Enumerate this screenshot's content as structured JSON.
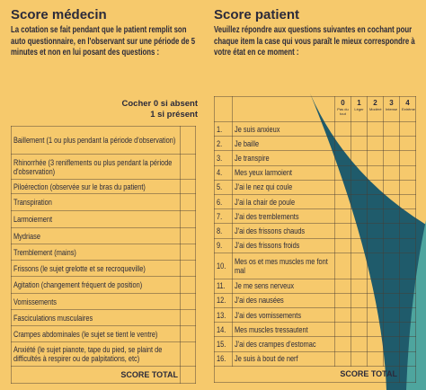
{
  "left": {
    "title": "Score médecin",
    "instructions": "La cotation se fait pendant que le patient remplit son auto questionnaire, en l'observant sur une période de 5 minutes et non en lui posant des questions :",
    "column_header": [
      "Cocher 0 si absent",
      "1 si présent"
    ],
    "rows": [
      "Baillement (1 ou plus pendant la période d'observation)",
      "Rhinorrhée (3 reniflements ou plus pendant la période d'observation)",
      "Piloérection (observée sur le bras du patient)",
      "Transpiration",
      "Larmoiement",
      "Mydriase",
      "Tremblement (mains)",
      "Frissons (le sujet grelotte et se recroqueville)",
      "Agitation (changement fréquent de position)",
      "Vomissements",
      "Fasciculations musculaires",
      "Crampes abdominales (le sujet se tient le ventre)",
      "Anxiété (le sujet pianote, tape du pied, se plaint de difficultés à respirer ou de palpitations, etc)"
    ],
    "total": "SCORE TOTAL"
  },
  "right": {
    "title": "Score patient",
    "instructions": "Veuillez répondre aux questions suivantes en cochant pour chaque item la case qui vous paraît le mieux correspondre à votre état en ce moment :",
    "columns": [
      {
        "score": "0",
        "label": "Pas du tout"
      },
      {
        "score": "1",
        "label": "Léger"
      },
      {
        "score": "2",
        "label": "Modéré"
      },
      {
        "score": "3",
        "label": "Intense"
      },
      {
        "score": "4",
        "label": "Extrême"
      }
    ],
    "rows": [
      {
        "number": "1.",
        "text": "Je suis anxieux"
      },
      {
        "number": "2.",
        "text": "Je baille"
      },
      {
        "number": "3.",
        "text": "Je transpire"
      },
      {
        "number": "4.",
        "text": "Mes yeux larmoient"
      },
      {
        "number": "5.",
        "text": "J'ai le nez qui coule"
      },
      {
        "number": "6.",
        "text": "J'ai la chair de poule"
      },
      {
        "number": "7.",
        "text": "J'ai des tremblements"
      },
      {
        "number": "8.",
        "text": "J'ai des frissons chauds"
      },
      {
        "number": "9.",
        "text": "J'ai des frissons froids"
      },
      {
        "number": "10.",
        "text": "Mes os et mes muscles me font mal"
      },
      {
        "number": "11.",
        "text": "Je me sens nerveux"
      },
      {
        "number": "12.",
        "text": "J'ai des nausées"
      },
      {
        "number": "13.",
        "text": "J'ai des vomissements"
      },
      {
        "number": "14.",
        "text": "Mes muscles tressautent"
      },
      {
        "number": "15.",
        "text": "J'ai des crampes d'estomac"
      },
      {
        "number": "16.",
        "text": "Je suis à bout de nerf"
      }
    ],
    "total": "SCORE TOTAL"
  }
}
